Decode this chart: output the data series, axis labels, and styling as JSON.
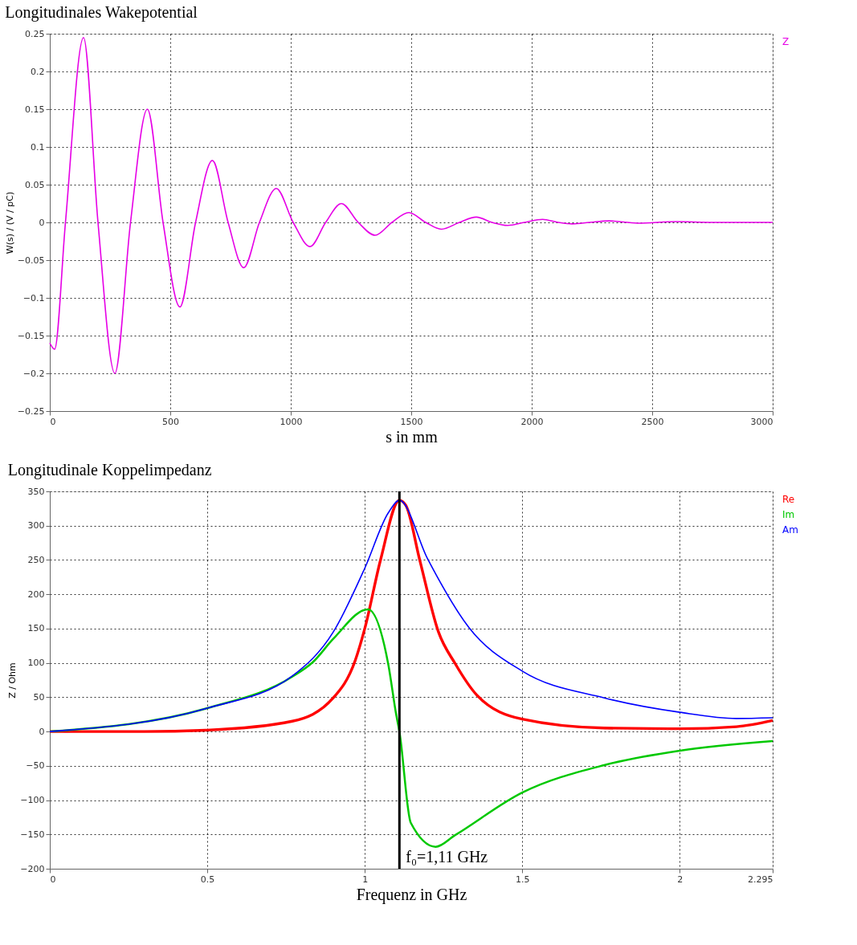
{
  "chart_data": [
    {
      "type": "line",
      "title": "Longitudinales Wakepotential",
      "xlabel": "s in mm",
      "ylabel": "W(s) / (V / pC)",
      "xlim": [
        0,
        3000
      ],
      "xticks": [
        0,
        500,
        1000,
        1500,
        2000,
        2500,
        3000
      ],
      "ylim": [
        -0.25,
        0.25
      ],
      "yticks": [
        -0.25,
        -0.2,
        -0.15,
        -0.1,
        -0.05,
        0,
        0.05,
        0.1,
        0.15,
        0.2,
        0.25
      ],
      "grid": true,
      "legend": "top right",
      "line_style": "solid",
      "series": [
        {
          "name": "Z",
          "color": "#e600e6",
          "x": [
            0,
            20,
            65,
            140,
            200,
            270,
            335,
            405,
            470,
            540,
            605,
            675,
            740,
            805,
            870,
            940,
            1010,
            1080,
            1145,
            1210,
            1280,
            1350,
            1420,
            1490,
            1560,
            1625,
            1700,
            1770,
            1835,
            1900,
            1970,
            2045,
            2110,
            2170,
            2240,
            2320,
            2440,
            2600,
            2750,
            3000
          ],
          "values": [
            -0.16,
            -0.168,
            0,
            0.245,
            0,
            -0.2,
            0,
            0.15,
            0,
            -0.112,
            0,
            0.082,
            0,
            -0.06,
            0,
            0.045,
            0,
            -0.032,
            0,
            0.025,
            0,
            -0.017,
            0,
            0.013,
            0,
            -0.009,
            0,
            0.007,
            0,
            -0.004,
            0,
            0.004,
            0,
            -0.002,
            0,
            0.002,
            -0.001,
            0.001,
            0,
            0
          ]
        }
      ]
    },
    {
      "type": "line",
      "title": "Longitudinale Koppelimpedanz",
      "xlabel": "Frequenz in GHz",
      "ylabel": "Z / Ohm",
      "xlim": [
        0,
        2.295
      ],
      "xticks": [
        0,
        0.5,
        1,
        1.5,
        2,
        2.295
      ],
      "ylim": [
        -200,
        350
      ],
      "yticks": [
        -200,
        -150,
        -100,
        -50,
        0,
        50,
        100,
        150,
        200,
        250,
        300,
        350
      ],
      "grid": true,
      "legend": "top right",
      "line_style": "solid",
      "ref_lines": [
        {
          "axis": "x",
          "value": 1.11,
          "label": "f₀=1,11 GHz",
          "color": "#000000"
        }
      ],
      "series": [
        {
          "name": "Re",
          "color": "#ff0000",
          "x": [
            0,
            0.3,
            0.5,
            0.77,
            0.9,
            0.97,
            1.0,
            1.05,
            1.11,
            1.13,
            1.175,
            1.234,
            1.287,
            1.356,
            1.5,
            1.76,
            2.0,
            2.18,
            2.295
          ],
          "values": [
            0,
            0,
            2,
            15,
            49,
            104,
            150,
            250,
            337,
            330,
            249,
            145,
            99,
            53,
            18,
            5,
            4,
            7,
            16
          ]
        },
        {
          "name": "Im",
          "color": "#00c800",
          "x": [
            0,
            0.5,
            0.77,
            0.835,
            0.9,
            1.01,
            1.075,
            1.1,
            1.11,
            1.146,
            1.225,
            1.287,
            1.5,
            1.76,
            2.0,
            2.295
          ],
          "values": [
            0,
            34,
            80,
            101,
            135,
            178,
            97,
            24,
            0,
            -133,
            -168,
            -151,
            -89,
            -49,
            -28,
            -14
          ]
        },
        {
          "name": "Am",
          "color": "#0000ff",
          "x": [
            0,
            0.5,
            0.77,
            0.9,
            1.0,
            1.075,
            1.11,
            1.199,
            1.33,
            1.5,
            1.76,
            2.0,
            2.18,
            2.295
          ],
          "values": [
            0,
            34,
            81,
            145,
            238,
            319,
            337,
            252,
            152,
            88,
            49,
            28,
            19,
            20
          ]
        }
      ]
    }
  ]
}
